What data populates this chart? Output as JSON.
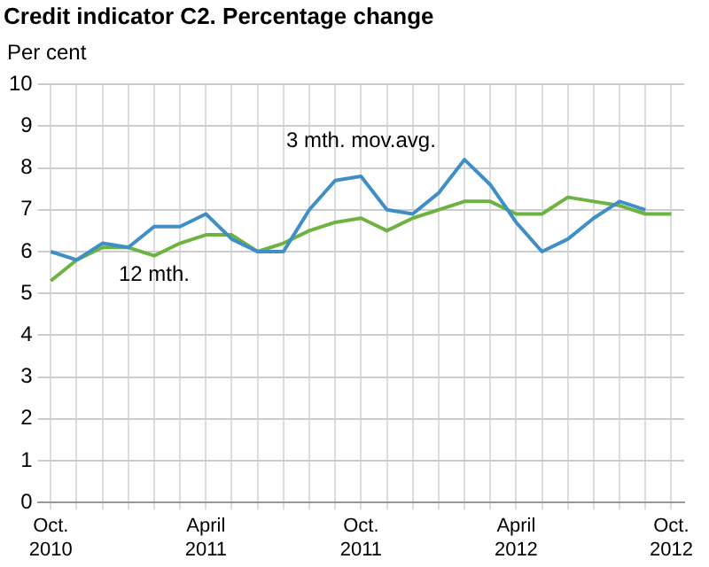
{
  "chart_data": {
    "type": "line",
    "title": "Credit indicator C2. Percentage change",
    "ylabel": "Per cent",
    "categories": [
      "Oct. 2010",
      null,
      null,
      null,
      null,
      null,
      "April 2011",
      null,
      null,
      null,
      null,
      null,
      "Oct. 2011",
      null,
      null,
      null,
      null,
      null,
      "April 2012",
      null,
      null,
      null,
      null,
      null,
      "Oct. 2012"
    ],
    "series": [
      {
        "name": "3 mth. mov.avg.",
        "color": "#3d8fc6",
        "values": [
          6.0,
          5.8,
          6.2,
          6.1,
          6.6,
          6.6,
          6.9,
          6.3,
          6.0,
          6.0,
          7.0,
          7.7,
          7.8,
          7.0,
          6.9,
          7.4,
          8.2,
          7.6,
          6.7,
          6.0,
          6.3,
          6.8,
          7.2,
          7.0,
          null
        ]
      },
      {
        "name": "12 mth.",
        "color": "#6db33f",
        "values": [
          5.3,
          5.8,
          6.1,
          6.1,
          5.9,
          6.2,
          6.4,
          6.4,
          6.0,
          6.2,
          6.5,
          6.7,
          6.8,
          6.5,
          6.8,
          7.0,
          7.2,
          7.2,
          6.9,
          6.9,
          7.3,
          7.2,
          7.1,
          6.9,
          6.9
        ]
      }
    ],
    "ylim": [
      0,
      10
    ],
    "yticks": [
      0,
      1,
      2,
      3,
      4,
      5,
      6,
      7,
      8,
      9,
      10
    ],
    "grid": true,
    "legend": false,
    "marker": "none",
    "line_style": "solid"
  }
}
